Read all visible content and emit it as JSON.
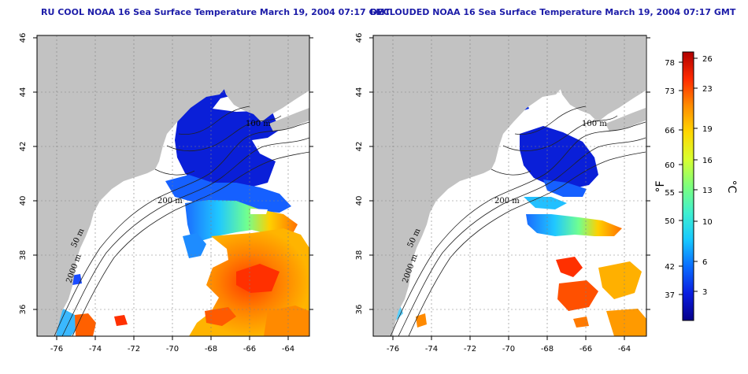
{
  "panels": [
    {
      "id": "left",
      "title": "RU COOL NOAA 16 Sea Surface Temperature March 19, 2004 07:17 GMT",
      "contour_labels": [
        "100 m",
        "200 m",
        "50 m",
        "2000 m"
      ]
    },
    {
      "id": "right",
      "title": "DECLOUDED NOAA 16 Sea Surface Temperature March 19, 2004 07:17 GMT",
      "contour_labels": [
        "100 m",
        "200 m",
        "50 m",
        "2000 m"
      ]
    }
  ],
  "map_axes": {
    "longitude_ticks": [
      "-76",
      "-74",
      "-72",
      "-70",
      "-68",
      "-66",
      "-64"
    ],
    "latitude_ticks": [
      "46",
      "44",
      "42",
      "40",
      "38",
      "36"
    ],
    "lon_range": [
      -77.2,
      -62.8
    ],
    "lat_range": [
      35.0,
      46.0
    ],
    "grid": "dotted"
  },
  "colorbar": {
    "fahrenheit_label": "°F",
    "celsius_label": "°C",
    "fahrenheit_ticks": [
      "78",
      "73",
      "66",
      "60",
      "55",
      "50",
      "42",
      "37"
    ],
    "celsius_ticks": [
      "26",
      "23",
      "19",
      "16",
      "13",
      "10",
      "6",
      "3"
    ],
    "range_c": [
      0,
      27
    ],
    "colors": [
      "#06008a",
      "#0a1de0",
      "#0a6cff",
      "#17c8ff",
      "#3ff0d0",
      "#7dff7d",
      "#d8ff30",
      "#ffd700",
      "#ff8c00",
      "#ff2a00",
      "#b00000"
    ]
  },
  "colors": {
    "land": "#c2c2c2",
    "ocean": "#ffffff",
    "title": "#1c1ca8"
  }
}
